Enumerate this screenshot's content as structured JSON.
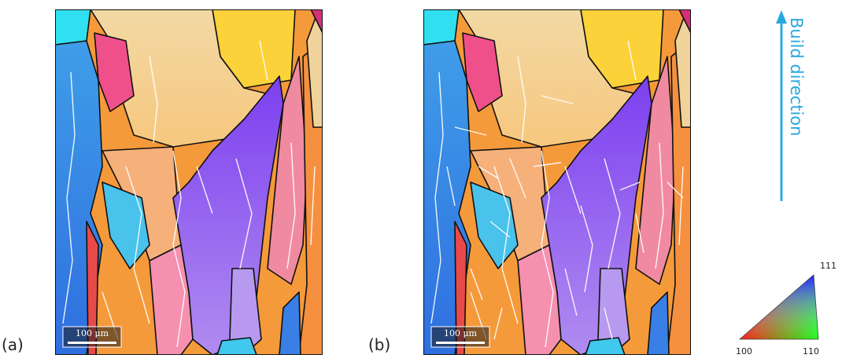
{
  "panels": [
    {
      "label": "(a)",
      "scale_bar": "100 μm"
    },
    {
      "label": "(b)",
      "scale_bar": "100 μm"
    }
  ],
  "build_direction": "Build direction",
  "legend": {
    "top": "111",
    "left": "100",
    "right": "110"
  }
}
